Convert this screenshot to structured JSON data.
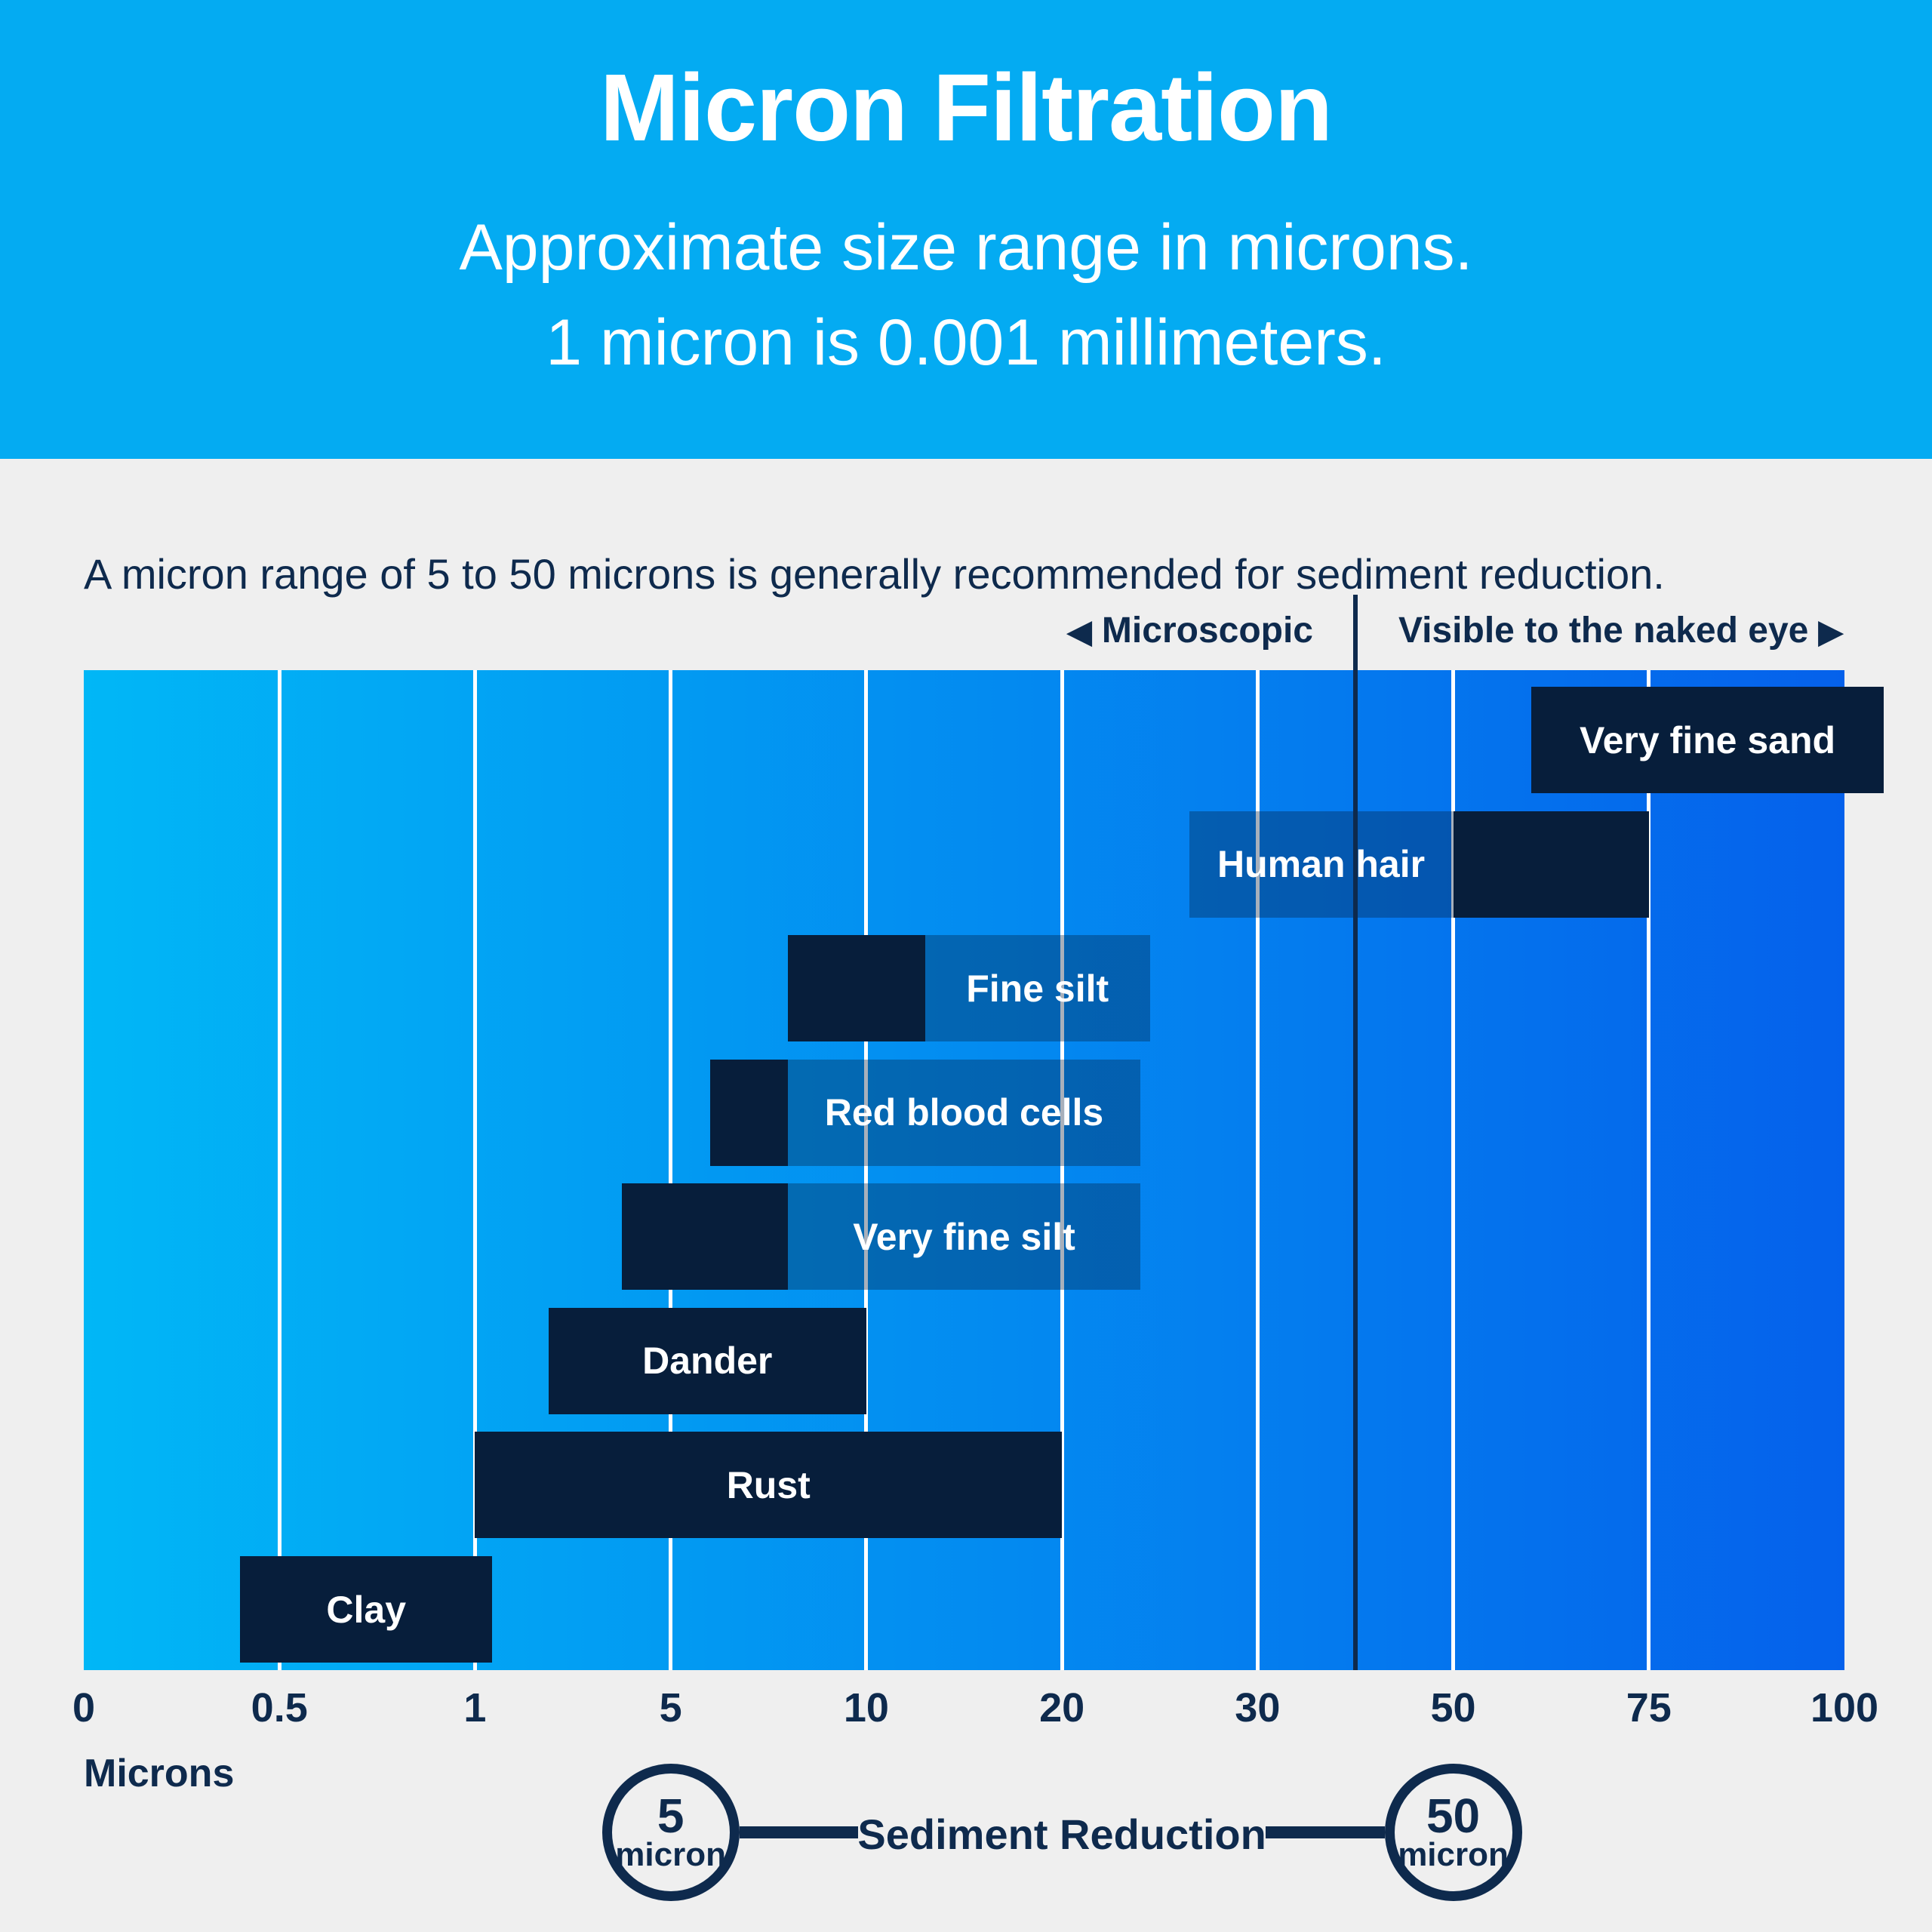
{
  "header": {
    "title": "Micron Filtration",
    "subtitle_line1": "Approximate size range in microns.",
    "subtitle_line2": "1 micron is 0.001 millimeters.",
    "background_color": "#04abf2",
    "text_color": "#ffffff"
  },
  "note": "A micron range of 5 to 50 microns is generally recommended for sediment reduction.",
  "zones": {
    "left_arrow": "◀",
    "left_label": "Microscopic",
    "right_label": "Visible to the naked eye",
    "right_arrow": "▶"
  },
  "chart_data": {
    "type": "range-bar",
    "title": "Micron Filtration",
    "x_axis_label": "Microns",
    "xticks": [
      0,
      0.5,
      1,
      5,
      10,
      20,
      30,
      50,
      75,
      100
    ],
    "xtick_labels": [
      "0",
      "0.5",
      "1",
      "5",
      "10",
      "20",
      "30",
      "50",
      "75",
      "100"
    ],
    "x_scale": "piecewise-linear-equal-tick-spacing",
    "grid": true,
    "gridline_color": "#ffffff",
    "divider_micron": 40,
    "divider_color": "#0e2a4d",
    "gradient": [
      "#01b7f6",
      "#0561eb"
    ],
    "bar_color": "#071e3b",
    "label_box_color": "rgba(7,30,59,0.35)",
    "rows": [
      {
        "label": "Very fine sand",
        "range_microns": [
          60,
          105
        ]
      },
      {
        "label": "Human hair",
        "range_microns": [
          50,
          75
        ],
        "label_box_microns": [
          26.5,
          50
        ]
      },
      {
        "label": "Fine silt",
        "range_microns": [
          8,
          13
        ],
        "label_box_microns": [
          13,
          24.5
        ]
      },
      {
        "label": "Red blood cells",
        "range_microns": [
          6,
          8
        ],
        "label_box_microns": [
          8,
          24
        ]
      },
      {
        "label": "Very fine silt",
        "range_microns": [
          4,
          8
        ],
        "label_box_microns": [
          8,
          24
        ]
      },
      {
        "label": "Dander",
        "range_microns": [
          2.5,
          10
        ]
      },
      {
        "label": "Rust",
        "range_microns": [
          1,
          20
        ]
      },
      {
        "label": "Clay",
        "range_microns": [
          0.4,
          1.35
        ]
      }
    ]
  },
  "footer": {
    "left_badge": {
      "value": "5",
      "unit": "micron",
      "at_micron": 5
    },
    "label": "Sediment Reduction",
    "right_badge": {
      "value": "50",
      "unit": "micron",
      "at_micron": 50
    }
  }
}
